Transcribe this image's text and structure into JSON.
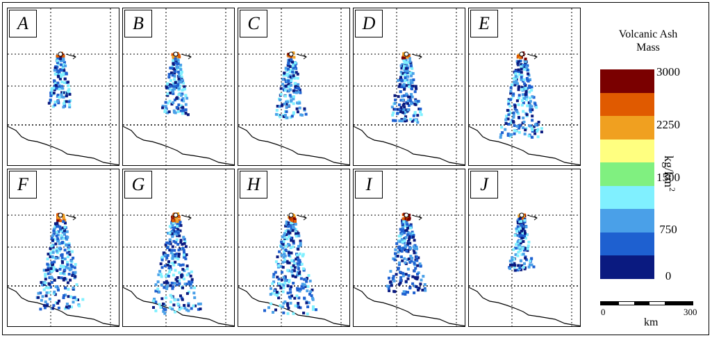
{
  "panels": [
    "A",
    "B",
    "C",
    "D",
    "E",
    "F",
    "G",
    "H",
    "I",
    "J"
  ],
  "legend": {
    "title_line1": "Volcanic Ash",
    "title_line2": "Mass",
    "ticks": [
      "3000",
      "2250",
      "1500",
      "750",
      "0"
    ],
    "unit": "kg/km",
    "unit_exp": "2",
    "scale_start": "0",
    "scale_end": "300",
    "scale_unit": "km"
  },
  "colors": [
    "#7a0000",
    "#e05a00",
    "#f0a020",
    "#ffff80",
    "#80f080",
    "#80f0ff",
    "#4aa0e8",
    "#1e60d0",
    "#0a1a80"
  ],
  "plume_growth": [
    0.35,
    0.45,
    0.5,
    0.55,
    0.75,
    0.9,
    0.95,
    0.95,
    0.7,
    0.4
  ]
}
